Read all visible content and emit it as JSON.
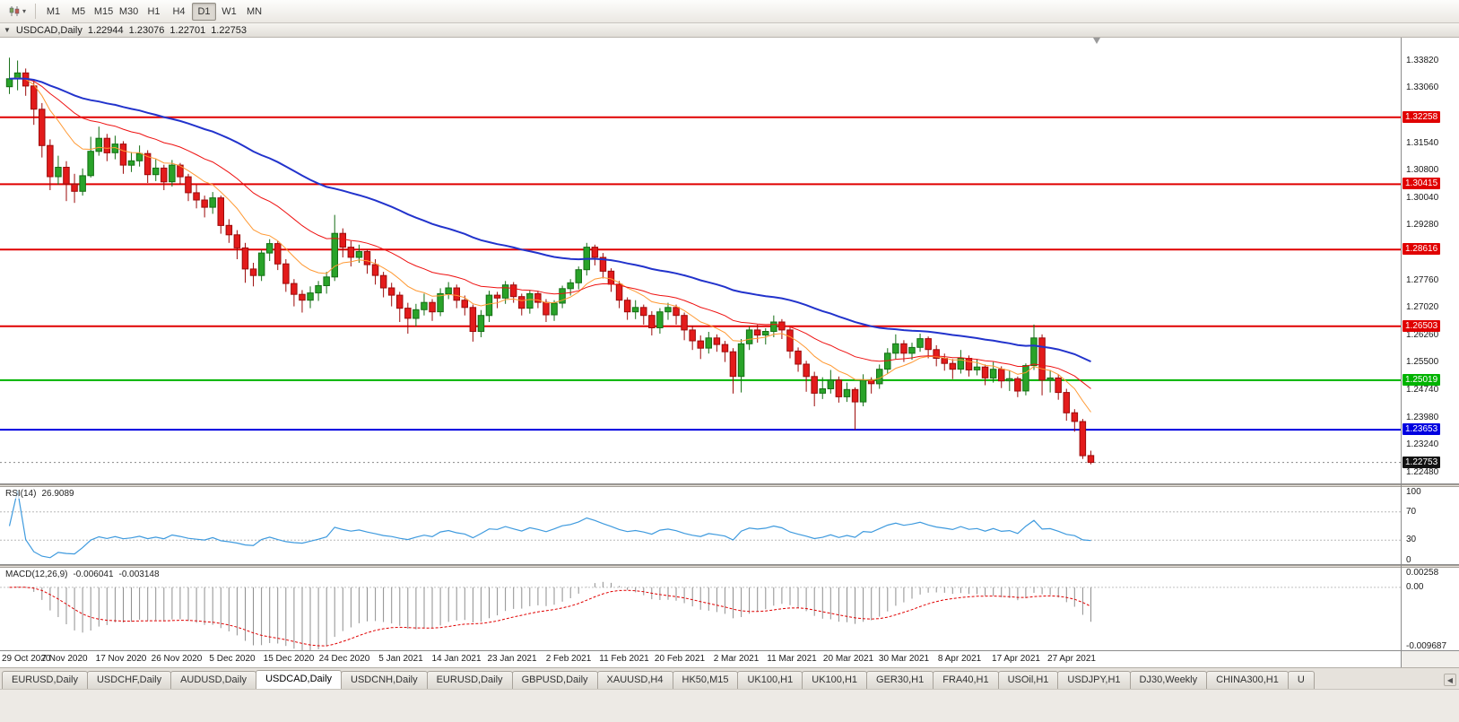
{
  "toolbar": {
    "timeframes": [
      "M1",
      "M5",
      "M15",
      "M30",
      "H1",
      "H4",
      "D1",
      "W1",
      "MN"
    ],
    "active_timeframe": "D1"
  },
  "chart": {
    "symbol": "USDCAD,Daily",
    "open": "1.22944",
    "high": "1.23076",
    "low": "1.22701",
    "close": "1.22753"
  },
  "indicators": {
    "rsi": {
      "label": "RSI(14)",
      "value": "26.9089",
      "levels": [
        "100",
        "70",
        "30",
        "0"
      ],
      "level_lines": [
        70,
        30
      ],
      "line_color": "#3e9ade"
    },
    "macd": {
      "label": "MACD(12,26,9)",
      "main_value": "-0.006041",
      "signal_value": "-0.003148",
      "axis_ticks": [
        "0.00258",
        "0.00",
        "-0.009687"
      ],
      "bar_color": "#8f8f8f",
      "signal_color": "#e00000"
    }
  },
  "chart_data": {
    "type": "candlestick",
    "symbol": "USDCAD",
    "timeframe": "Daily",
    "y_range": [
      1.2215,
      1.3445
    ],
    "y_ticks": [
      "1.33820",
      "1.33060",
      "1.31540",
      "1.30800",
      "1.30040",
      "1.29280",
      "1.27760",
      "1.27020",
      "1.26260",
      "1.25500",
      "1.24740",
      "1.23980",
      "1.23240",
      "1.22480"
    ],
    "x_labels": [
      "29 Oct 2020",
      "7 Nov 2020",
      "17 Nov 2020",
      "26 Nov 2020",
      "5 Dec 2020",
      "15 Dec 2020",
      "24 Dec 2020",
      "5 Jan 2021",
      "14 Jan 2021",
      "23 Jan 2021",
      "2 Feb 2021",
      "11 Feb 2021",
      "20 Feb 2021",
      "2 Mar 2021",
      "11 Mar 2021",
      "20 Mar 2021",
      "30 Mar 2021",
      "8 Apr 2021",
      "17 Apr 2021",
      "27 Apr 2021"
    ],
    "hlines": [
      {
        "price": "1.32258",
        "color": "#e00000"
      },
      {
        "price": "1.30415",
        "color": "#e00000"
      },
      {
        "price": "1.28616",
        "color": "#e00000"
      },
      {
        "price": "1.26503",
        "color": "#e00000"
      },
      {
        "price": "1.25019",
        "color": "#00b300"
      },
      {
        "price": "1.23653",
        "color": "#0000e0"
      }
    ],
    "current_price": "1.22753",
    "up_color": "#29a329",
    "up_dark": "#156e15",
    "down_color": "#e31b1b",
    "down_dark": "#9c0a0a",
    "rsi_period": 14,
    "macd_params": {
      "fast": 12,
      "slow": 26,
      "signal": 9
    },
    "macd_range": [
      -0.009687,
      0.00258
    ],
    "moving_averages": [
      {
        "period": 10,
        "color": "#ff9933",
        "width": 1
      },
      {
        "period": 24,
        "color": "#ee1111",
        "width": 1
      },
      {
        "period": 55,
        "color": "#2233cc",
        "width": 2
      }
    ],
    "candles": [
      [
        1.331,
        1.339,
        1.329,
        1.3332
      ],
      [
        1.3332,
        1.3382,
        1.33,
        1.3348
      ],
      [
        1.3348,
        1.336,
        1.3285,
        1.3312
      ],
      [
        1.3312,
        1.333,
        1.3205,
        1.3248
      ],
      [
        1.3248,
        1.3265,
        1.3115,
        1.3148
      ],
      [
        1.3148,
        1.3165,
        1.3025,
        1.3062
      ],
      [
        1.3062,
        1.312,
        1.304,
        1.3088
      ],
      [
        1.3088,
        1.3105,
        1.2995,
        1.3042
      ],
      [
        1.3042,
        1.307,
        1.299,
        1.3022
      ],
      [
        1.3022,
        1.3085,
        1.301,
        1.3065
      ],
      [
        1.3065,
        1.3172,
        1.306,
        1.3132
      ],
      [
        1.3132,
        1.32,
        1.312,
        1.3168
      ],
      [
        1.3168,
        1.318,
        1.3105,
        1.3128
      ],
      [
        1.3128,
        1.3175,
        1.311,
        1.3152
      ],
      [
        1.3152,
        1.316,
        1.307,
        1.3094
      ],
      [
        1.3094,
        1.313,
        1.3075,
        1.3106
      ],
      [
        1.3106,
        1.3148,
        1.309,
        1.3126
      ],
      [
        1.3126,
        1.3135,
        1.3045,
        1.3068
      ],
      [
        1.3068,
        1.311,
        1.305,
        1.3086
      ],
      [
        1.3086,
        1.3095,
        1.3025,
        1.3048
      ],
      [
        1.3048,
        1.3108,
        1.3035,
        1.3094
      ],
      [
        1.3094,
        1.31,
        1.304,
        1.3062
      ],
      [
        1.3062,
        1.307,
        1.2995,
        1.3018
      ],
      [
        1.3018,
        1.304,
        1.2975,
        1.2998
      ],
      [
        1.2998,
        1.301,
        1.295,
        1.2978
      ],
      [
        1.2978,
        1.302,
        1.296,
        1.3004
      ],
      [
        1.3004,
        1.301,
        1.2905,
        1.2928
      ],
      [
        1.2928,
        1.2945,
        1.288,
        1.2902
      ],
      [
        1.2902,
        1.2915,
        1.2835,
        1.2866
      ],
      [
        1.2866,
        1.288,
        1.277,
        1.2808
      ],
      [
        1.2808,
        1.2825,
        1.276,
        1.279
      ],
      [
        1.279,
        1.286,
        1.2775,
        1.2852
      ],
      [
        1.2852,
        1.289,
        1.283,
        1.2878
      ],
      [
        1.2878,
        1.2885,
        1.2805,
        1.2822
      ],
      [
        1.2822,
        1.2835,
        1.2745,
        1.2768
      ],
      [
        1.2768,
        1.278,
        1.2705,
        1.2738
      ],
      [
        1.2738,
        1.275,
        1.2688,
        1.2722
      ],
      [
        1.2722,
        1.276,
        1.27,
        1.2742
      ],
      [
        1.2742,
        1.2775,
        1.272,
        1.2762
      ],
      [
        1.2762,
        1.28,
        1.274,
        1.2786
      ],
      [
        1.2786,
        1.2957,
        1.2775,
        1.2906
      ],
      [
        1.2906,
        1.292,
        1.284,
        1.2868
      ],
      [
        1.2868,
        1.2885,
        1.2815,
        1.284
      ],
      [
        1.284,
        1.2875,
        1.2825,
        1.2856
      ],
      [
        1.2856,
        1.2862,
        1.2795,
        1.282
      ],
      [
        1.282,
        1.2835,
        1.2765,
        1.279
      ],
      [
        1.279,
        1.28,
        1.273,
        1.2756
      ],
      [
        1.2756,
        1.277,
        1.2705,
        1.2736
      ],
      [
        1.2736,
        1.2745,
        1.2662,
        1.27
      ],
      [
        1.27,
        1.2715,
        1.263,
        1.2672
      ],
      [
        1.2672,
        1.2712,
        1.265,
        1.2696
      ],
      [
        1.2696,
        1.274,
        1.268,
        1.2716
      ],
      [
        1.2716,
        1.2725,
        1.2665,
        1.269
      ],
      [
        1.269,
        1.2755,
        1.2678,
        1.274
      ],
      [
        1.274,
        1.2772,
        1.2725,
        1.2756
      ],
      [
        1.2756,
        1.2765,
        1.27,
        1.2722
      ],
      [
        1.2722,
        1.2735,
        1.268,
        1.2702
      ],
      [
        1.2702,
        1.271,
        1.2608,
        1.2636
      ],
      [
        1.2636,
        1.2695,
        1.262,
        1.268
      ],
      [
        1.268,
        1.2748,
        1.2662,
        1.2736
      ],
      [
        1.2736,
        1.2745,
        1.27,
        1.2728
      ],
      [
        1.2728,
        1.2775,
        1.2712,
        1.2764
      ],
      [
        1.2764,
        1.2772,
        1.2715,
        1.2732
      ],
      [
        1.2732,
        1.274,
        1.268,
        1.27
      ],
      [
        1.27,
        1.275,
        1.2685,
        1.274
      ],
      [
        1.274,
        1.2748,
        1.27,
        1.2716
      ],
      [
        1.2716,
        1.2725,
        1.2662,
        1.2682
      ],
      [
        1.2682,
        1.2722,
        1.2665,
        1.2714
      ],
      [
        1.2714,
        1.2762,
        1.27,
        1.2754
      ],
      [
        1.2754,
        1.278,
        1.2735,
        1.277
      ],
      [
        1.277,
        1.2815,
        1.2752,
        1.2806
      ],
      [
        1.2806,
        1.288,
        1.279,
        1.2868
      ],
      [
        1.2868,
        1.2875,
        1.2818,
        1.284
      ],
      [
        1.284,
        1.2852,
        1.2782,
        1.2802
      ],
      [
        1.2802,
        1.281,
        1.2745,
        1.2766
      ],
      [
        1.2766,
        1.2775,
        1.27,
        1.2722
      ],
      [
        1.2722,
        1.273,
        1.2668,
        1.269
      ],
      [
        1.269,
        1.2722,
        1.267,
        1.2702
      ],
      [
        1.2702,
        1.271,
        1.2655,
        1.268
      ],
      [
        1.268,
        1.2692,
        1.2625,
        1.2646
      ],
      [
        1.2646,
        1.27,
        1.263,
        1.269
      ],
      [
        1.269,
        1.2715,
        1.2668,
        1.2702
      ],
      [
        1.2702,
        1.271,
        1.2655,
        1.268
      ],
      [
        1.268,
        1.2688,
        1.2612,
        1.264
      ],
      [
        1.264,
        1.2652,
        1.2585,
        1.261
      ],
      [
        1.261,
        1.2625,
        1.256,
        1.259
      ],
      [
        1.259,
        1.2635,
        1.2575,
        1.2618
      ],
      [
        1.2618,
        1.2628,
        1.258,
        1.26
      ],
      [
        1.26,
        1.261,
        1.2552,
        1.258
      ],
      [
        1.258,
        1.259,
        1.2465,
        1.2512
      ],
      [
        1.2512,
        1.2615,
        1.2468,
        1.2602
      ],
      [
        1.2602,
        1.265,
        1.2585,
        1.264
      ],
      [
        1.264,
        1.2655,
        1.2605,
        1.2626
      ],
      [
        1.2626,
        1.2645,
        1.26,
        1.2636
      ],
      [
        1.2636,
        1.268,
        1.262,
        1.2662
      ],
      [
        1.2662,
        1.267,
        1.2615,
        1.264
      ],
      [
        1.264,
        1.2648,
        1.2562,
        1.2582
      ],
      [
        1.2582,
        1.2592,
        1.2525,
        1.2546
      ],
      [
        1.2546,
        1.2555,
        1.247,
        1.2512
      ],
      [
        1.2512,
        1.2525,
        1.243,
        1.2466
      ],
      [
        1.2466,
        1.251,
        1.245,
        1.2478
      ],
      [
        1.2478,
        1.253,
        1.2465,
        1.2502
      ],
      [
        1.2502,
        1.2512,
        1.244,
        1.2456
      ],
      [
        1.2456,
        1.2495,
        1.2442,
        1.2476
      ],
      [
        1.2476,
        1.2482,
        1.2365,
        1.2442
      ],
      [
        1.2442,
        1.2518,
        1.243,
        1.2502
      ],
      [
        1.2502,
        1.251,
        1.2465,
        1.2492
      ],
      [
        1.2492,
        1.2545,
        1.2478,
        1.2532
      ],
      [
        1.2532,
        1.259,
        1.252,
        1.2576
      ],
      [
        1.2576,
        1.2628,
        1.256,
        1.2602
      ],
      [
        1.2602,
        1.2612,
        1.2552,
        1.2576
      ],
      [
        1.2576,
        1.2605,
        1.2558,
        1.2592
      ],
      [
        1.2592,
        1.263,
        1.258,
        1.2616
      ],
      [
        1.2616,
        1.2622,
        1.2562,
        1.2586
      ],
      [
        1.2586,
        1.2598,
        1.254,
        1.2562
      ],
      [
        1.2562,
        1.2575,
        1.2528,
        1.2548
      ],
      [
        1.2548,
        1.256,
        1.2505,
        1.2532
      ],
      [
        1.2532,
        1.2585,
        1.252,
        1.2562
      ],
      [
        1.2562,
        1.257,
        1.2512,
        1.253
      ],
      [
        1.253,
        1.256,
        1.2515,
        1.2538
      ],
      [
        1.2538,
        1.2545,
        1.2488,
        1.2508
      ],
      [
        1.2508,
        1.2552,
        1.2495,
        1.2532
      ],
      [
        1.2532,
        1.254,
        1.248,
        1.25
      ],
      [
        1.25,
        1.2528,
        1.2472,
        1.2506
      ],
      [
        1.2506,
        1.2512,
        1.2455,
        1.2472
      ],
      [
        1.2472,
        1.2548,
        1.246,
        1.2542
      ],
      [
        1.2542,
        1.2655,
        1.253,
        1.2618
      ],
      [
        1.2618,
        1.2628,
        1.246,
        1.2502
      ],
      [
        1.2502,
        1.253,
        1.2468,
        1.2508
      ],
      [
        1.2508,
        1.2518,
        1.2448,
        1.2468
      ],
      [
        1.2468,
        1.2478,
        1.239,
        1.2412
      ],
      [
        1.2412,
        1.2422,
        1.236,
        1.2388
      ],
      [
        1.2388,
        1.2395,
        1.2285,
        1.2294
      ],
      [
        1.22944,
        1.23076,
        1.22701,
        1.22753
      ]
    ]
  },
  "tabs": {
    "items": [
      "EURUSD,Daily",
      "USDCHF,Daily",
      "AUDUSD,Daily",
      "USDCAD,Daily",
      "USDCNH,Daily",
      "EURUSD,Daily",
      "GBPUSD,Daily",
      "XAUUSD,H4",
      "HK50,M15",
      "UK100,H1",
      "UK100,H1",
      "GER30,H1",
      "FRA40,H1",
      "USOil,H1",
      "USDJPY,H1",
      "DJ30,Weekly",
      "CHINA300,H1",
      "U"
    ],
    "active_index": 3,
    "scroll_left_arrow": "◀"
  }
}
